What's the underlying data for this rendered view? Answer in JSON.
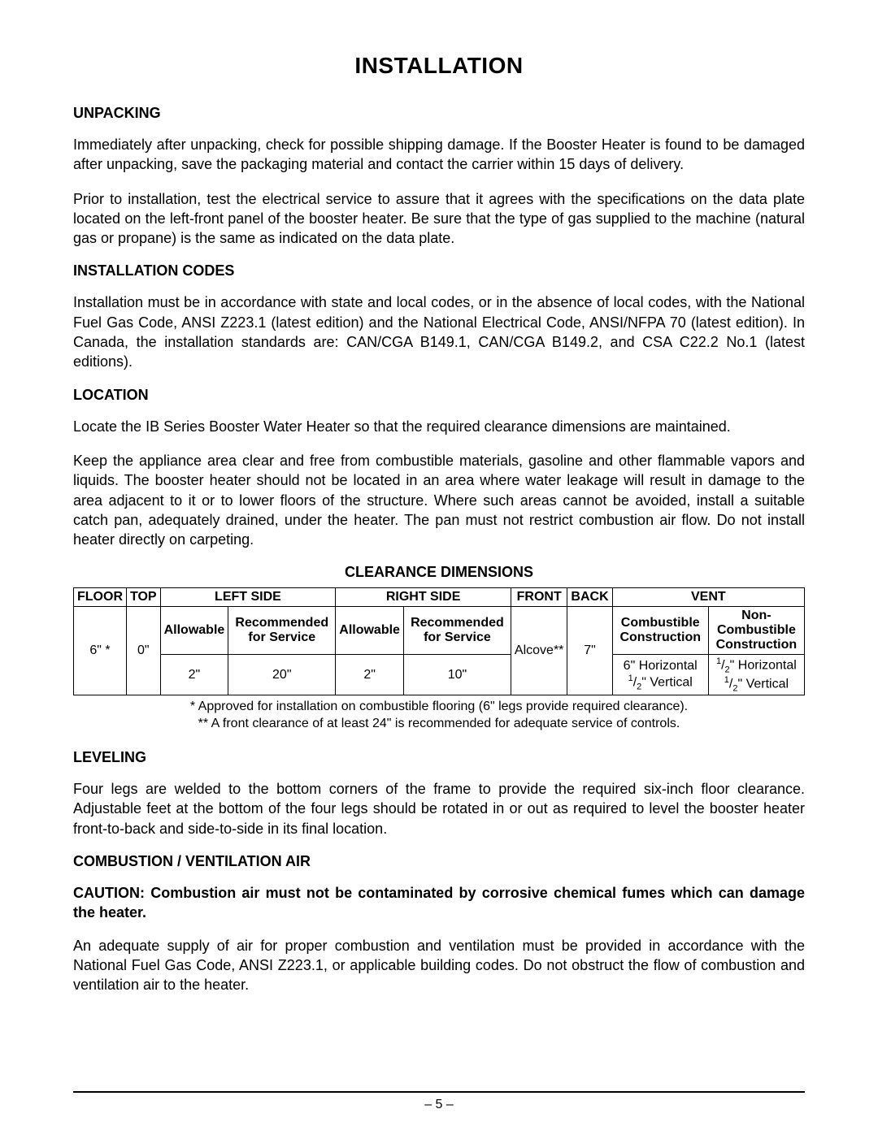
{
  "page_title": "INSTALLATION",
  "sections": {
    "unpacking": {
      "title": "UNPACKING",
      "p1": "Immediately after unpacking, check for possible shipping damage.  If the Booster Heater is found to be damaged after unpacking, save the packaging material and contact the carrier within 15 days of delivery.",
      "p2": "Prior to installation, test the electrical service to assure that it agrees with the specifications on the data plate located on the left-front panel of the booster heater.  Be sure that the type of gas supplied to the machine (natural gas or propane) is the same as indicated on the data plate."
    },
    "installation_codes": {
      "title": "INSTALLATION CODES",
      "p1": "Installation must be in accordance with state and local codes, or in the absence of local codes, with the National Fuel Gas Code, ANSI Z223.1 (latest edition) and the National Electrical Code, ANSI/NFPA 70 (latest edition). In Canada, the installation standards are: CAN/CGA B149.1, CAN/CGA B149.2, and CSA C22.2 No.1 (latest editions)."
    },
    "location": {
      "title": "LOCATION",
      "p1": "Locate the IB Series Booster Water Heater so that the required clearance dimensions are maintained.",
      "p2": "Keep the appliance area clear and free from combustible materials, gasoline and other flammable vapors and liquids.  The booster heater should not be located in an area where water leakage will result in damage to the area adjacent to it or to lower floors of the structure.  Where such areas cannot be avoided, install a suitable catch pan, adequately drained, under the heater.  The pan must not restrict combustion air flow.  Do not install heater directly on carpeting."
    },
    "leveling": {
      "title": "LEVELING",
      "p1": "Four legs are welded to the bottom corners of the frame to provide the required six-inch floor clearance.  Adjustable feet at the bottom of the four legs should be rotated in or out as required to level the booster heater front-to-back and side-to-side in its final location."
    },
    "combustion": {
      "title": "COMBUSTION / VENTILATION AIR",
      "caution": "CAUTION: Combustion air must not be contaminated by corrosive chemical fumes which can damage the heater.",
      "p1": "An adequate supply of air for proper combustion and ventilation must be provided in accordance with the National Fuel Gas Code, ANSI Z223.1, or applicable building codes.  Do not obstruct the flow of combustion and ventilation air to the heater."
    }
  },
  "table": {
    "title": "CLEARANCE DIMENSIONS",
    "headers": {
      "floor": "FLOOR",
      "top": "TOP",
      "left_side": "LEFT SIDE",
      "right_side": "RIGHT SIDE",
      "front": "FRONT",
      "back": "BACK",
      "vent": "VENT"
    },
    "subheaders": {
      "allowable": "Allowable",
      "rec_service": "Recommended for Service",
      "combustible": "Combustible Construction",
      "non_combustible_1": "Non-",
      "non_combustible_2": "Combustible Construction"
    },
    "values": {
      "floor": "6\" *",
      "top": "0\"",
      "left_allowable": "2\"",
      "left_rec": "20\"",
      "right_allowable": "2\"",
      "right_rec": "10\"",
      "front": "Alcove**",
      "back": "7\"",
      "vent_comb_h": "6\" Horizontal",
      "vent_comb_v": "\" Vertical",
      "vent_ncomb_h": "\" Horizontal",
      "vent_ncomb_v": "\" Vertical"
    },
    "footnote1": "* Approved for installation on combustible flooring (6\" legs provide required clearance).",
    "footnote2": "** A front clearance of at least 24\" is recommended for adequate service of controls."
  },
  "page_number": "– 5 –"
}
